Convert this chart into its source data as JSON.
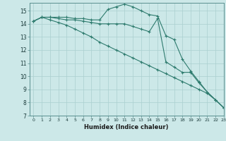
{
  "xlabel": "Humidex (Indice chaleur)",
  "ylabel": "",
  "bg_color": "#cce8e8",
  "grid_color": "#aacfcf",
  "line_color": "#2e7b6e",
  "xlim": [
    -0.5,
    23
  ],
  "ylim": [
    7,
    15.6
  ],
  "yticks": [
    7,
    8,
    9,
    10,
    11,
    12,
    13,
    14,
    15
  ],
  "xticks": [
    0,
    1,
    2,
    3,
    4,
    5,
    6,
    7,
    8,
    9,
    10,
    11,
    12,
    13,
    14,
    15,
    16,
    17,
    18,
    19,
    20,
    21,
    22,
    23
  ],
  "series": [
    [
      14.2,
      14.5,
      14.5,
      14.5,
      14.5,
      14.4,
      14.4,
      14.3,
      14.3,
      15.1,
      15.3,
      15.5,
      15.3,
      15.0,
      14.7,
      14.6,
      13.1,
      12.8,
      11.3,
      10.4,
      9.6,
      8.8,
      8.2,
      7.6
    ],
    [
      14.2,
      14.5,
      14.5,
      14.4,
      14.3,
      14.3,
      14.2,
      14.1,
      14.0,
      14.0,
      14.0,
      14.0,
      13.8,
      13.6,
      13.4,
      14.4,
      11.1,
      10.7,
      10.3,
      10.3,
      9.5,
      8.8,
      8.2,
      7.6
    ],
    [
      14.2,
      14.5,
      14.3,
      14.1,
      13.9,
      13.6,
      13.3,
      13.0,
      12.6,
      12.3,
      12.0,
      11.7,
      11.4,
      11.1,
      10.8,
      10.5,
      10.2,
      9.9,
      9.6,
      9.3,
      9.0,
      8.7,
      8.2,
      7.6
    ]
  ]
}
